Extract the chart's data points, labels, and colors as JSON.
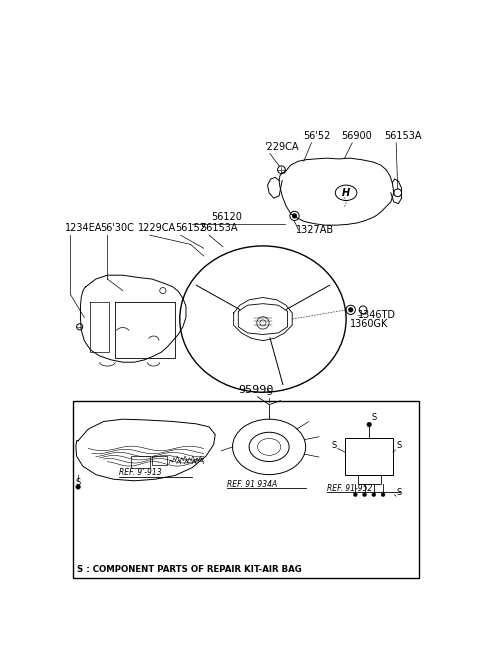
{
  "bg_color": "#ffffff",
  "fig_width": 4.8,
  "fig_height": 6.57,
  "dpi": 100,
  "labels_top": {
    "229CA": "'229CA",
    "5652": "56'52",
    "56900": "56900",
    "56153A": "56153A"
  },
  "labels_mid": {
    "56120": "56120",
    "1234EA": "1234EA",
    "5630C": "56'30C",
    "1229CA": "1229CA",
    "56152": "56152",
    "56153A": "56153A",
    "1327AB": "1327AB",
    "1346TD": "1346TD",
    "1360GK": "1360GK"
  },
  "bottom_label": "95990",
  "bottom_box_text": "S : COMPONENT PARTS OF REPAIR KIT-AIR BAG",
  "ref_labels": [
    "REF. 9'-913",
    "REF. 91 934A",
    "REF. 91-952"
  ],
  "s_label": "S"
}
